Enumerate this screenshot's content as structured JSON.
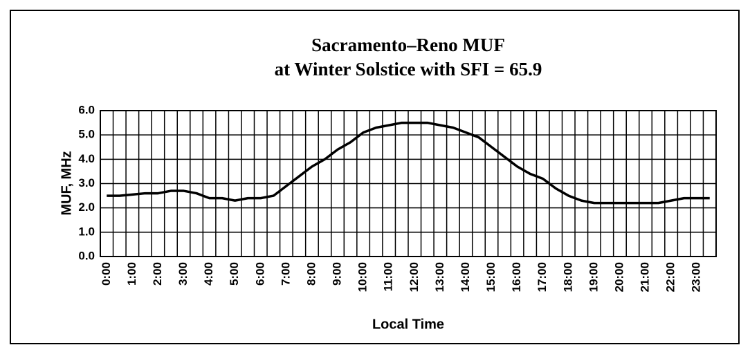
{
  "chart_data": {
    "type": "line",
    "title": "Sacramento–Reno MUF",
    "subtitle": "at Winter Solstice with SFI = 65.9",
    "x_label": "Local Time",
    "y_label": "MUF, MHz",
    "categories": [
      "0:00",
      null,
      "1:00",
      null,
      "2:00",
      null,
      "3:00",
      null,
      "4:00",
      null,
      "5:00",
      null,
      "6:00",
      null,
      "7:00",
      null,
      "8:00",
      null,
      "9:00",
      null,
      "10:00",
      null,
      "11:00",
      null,
      "12:00",
      null,
      "13:00",
      null,
      "14:00",
      null,
      "15:00",
      null,
      "16:00",
      null,
      "17:00",
      null,
      "18:00",
      null,
      "19:00",
      null,
      "20:00",
      null,
      "21:00",
      null,
      "22:00",
      null,
      "23:00",
      null
    ],
    "series": [
      {
        "name": "MUF",
        "color": "#000000",
        "values": [
          2.5,
          2.5,
          2.55,
          2.6,
          2.6,
          2.7,
          2.7,
          2.6,
          2.4,
          2.4,
          2.3,
          2.4,
          2.4,
          2.5,
          2.9,
          3.3,
          3.7,
          4.0,
          4.4,
          4.7,
          5.1,
          5.3,
          5.4,
          5.5,
          5.5,
          5.5,
          5.4,
          5.3,
          5.1,
          4.9,
          4.5,
          4.1,
          3.7,
          3.4,
          3.2,
          2.8,
          2.5,
          2.3,
          2.2,
          2.2,
          2.2,
          2.2,
          2.2,
          2.2,
          2.3,
          2.4,
          2.4,
          2.4
        ]
      }
    ],
    "ylim": [
      0,
      6
    ],
    "yticks": [
      {
        "value": 0,
        "label": "0.0"
      },
      {
        "value": 1,
        "label": "1.0"
      },
      {
        "value": 2,
        "label": "2.0"
      },
      {
        "value": 3,
        "label": "3.0"
      },
      {
        "value": 4,
        "label": "4.0"
      },
      {
        "value": 5,
        "label": "5.0"
      },
      {
        "value": 6,
        "label": "6.0"
      }
    ],
    "grid": true
  }
}
